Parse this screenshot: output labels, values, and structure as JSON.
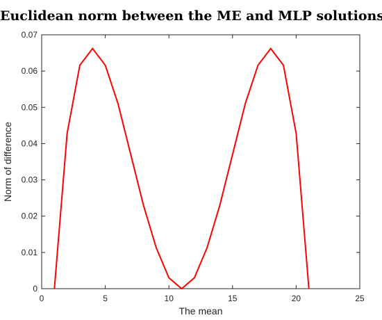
{
  "chart_data": {
    "type": "line",
    "title": "Euclidean norm between the ME and MLP solutions",
    "xlabel": "The mean",
    "ylabel": "Norm of difference",
    "xlim": [
      0,
      25
    ],
    "ylim": [
      0,
      0.07
    ],
    "xticks": [
      "0",
      "5",
      "10",
      "15",
      "20",
      "25"
    ],
    "yticks": [
      "0",
      "0.01",
      "0.02",
      "0.03",
      "0.04",
      "0.05",
      "0.06",
      "0.07"
    ],
    "grid": false,
    "series": [
      {
        "color": "#ff0000",
        "x": [
          1,
          2,
          3,
          4,
          5,
          6,
          7,
          8,
          9,
          10,
          11,
          12,
          13,
          14,
          15,
          16,
          17,
          18,
          19,
          20,
          21
        ],
        "y": [
          0,
          0.0428,
          0.0616,
          0.0662,
          0.0616,
          0.051,
          0.037,
          0.023,
          0.0113,
          0.003,
          0,
          0.003,
          0.0113,
          0.023,
          0.037,
          0.051,
          0.0616,
          0.0662,
          0.0616,
          0.0428,
          0
        ]
      }
    ]
  }
}
